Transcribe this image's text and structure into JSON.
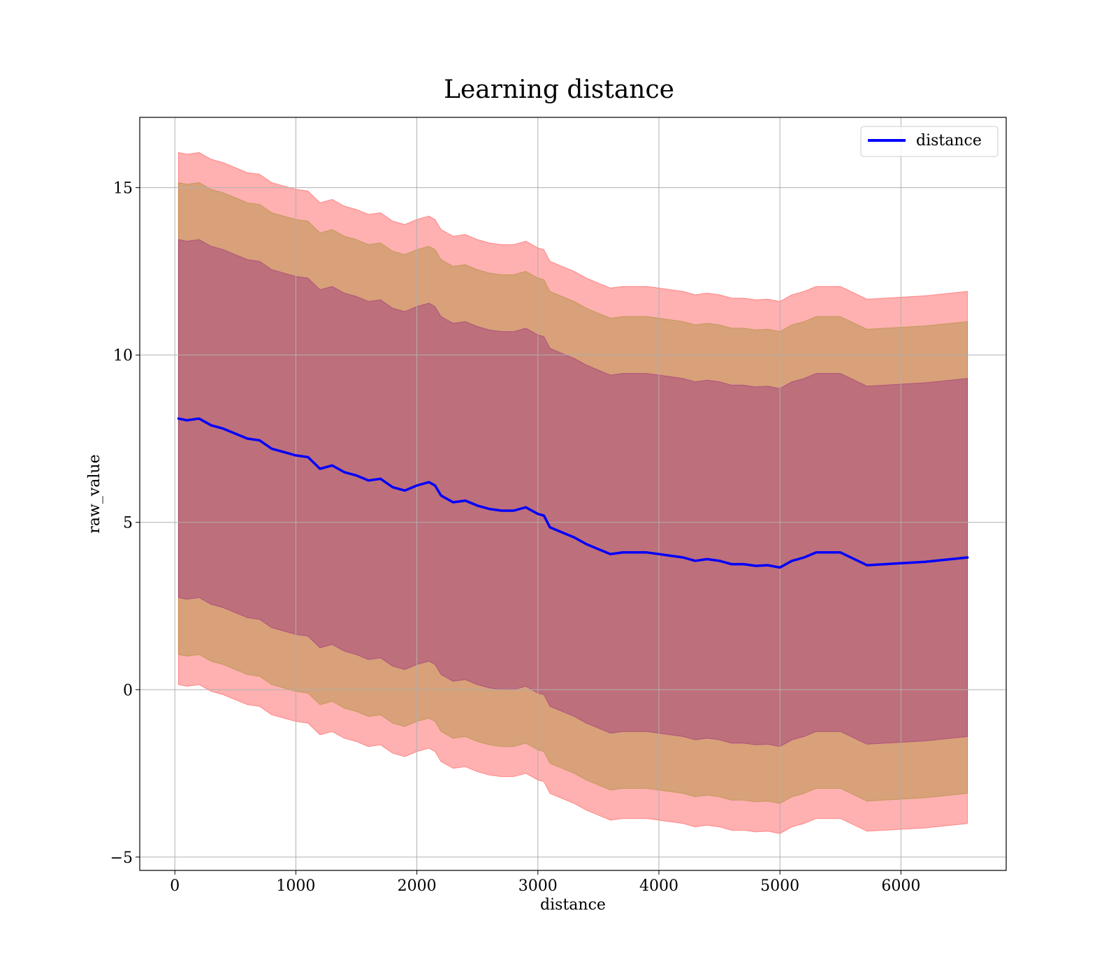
{
  "chart_data": {
    "type": "line",
    "title": "Learning distance",
    "xlabel": "distance",
    "ylabel": "raw_value",
    "xlim": [
      -290,
      6870
    ],
    "ylim": [
      -5.4,
      17.1
    ],
    "x_ticks": [
      0,
      1000,
      2000,
      3000,
      4000,
      5000,
      6000
    ],
    "y_ticks": [
      -5,
      0,
      5,
      10,
      15
    ],
    "x_tick_labels": [
      "0",
      "1000",
      "2000",
      "3000",
      "4000",
      "5000",
      "6000"
    ],
    "y_tick_labels": [
      "−5",
      "0",
      "5",
      "10",
      "15"
    ],
    "grid": true,
    "legend": {
      "position": "top-right",
      "entries": [
        "distance"
      ]
    },
    "series": [
      {
        "name": "distance",
        "color": "#0000ff",
        "x": [
          30,
          100,
          200,
          300,
          400,
          500,
          600,
          700,
          800,
          900,
          1000,
          1100,
          1200,
          1300,
          1400,
          1500,
          1600,
          1700,
          1800,
          1900,
          2000,
          2100,
          2150,
          2200,
          2300,
          2400,
          2500,
          2600,
          2700,
          2800,
          2900,
          3000,
          3050,
          3100,
          3200,
          3300,
          3400,
          3500,
          3600,
          3700,
          3800,
          3900,
          4000,
          4100,
          4200,
          4300,
          4400,
          4500,
          4600,
          4700,
          4800,
          4900,
          5000,
          5100,
          5200,
          5300,
          5500,
          5720,
          6200,
          6550
        ],
        "values": [
          8.1,
          8.05,
          8.1,
          7.9,
          7.8,
          7.65,
          7.5,
          7.45,
          7.2,
          7.1,
          7.0,
          6.95,
          6.6,
          6.7,
          6.5,
          6.4,
          6.25,
          6.3,
          6.05,
          5.95,
          6.1,
          6.2,
          6.1,
          5.8,
          5.6,
          5.65,
          5.5,
          5.4,
          5.35,
          5.35,
          5.45,
          5.25,
          5.2,
          4.85,
          4.7,
          4.55,
          4.35,
          4.2,
          4.05,
          4.1,
          4.1,
          4.1,
          4.05,
          4.0,
          3.95,
          3.85,
          3.9,
          3.85,
          3.75,
          3.75,
          3.7,
          3.72,
          3.65,
          3.85,
          3.95,
          4.1,
          4.1,
          3.72,
          3.82,
          3.95
        ]
      }
    ],
    "bands": [
      {
        "name": "outer",
        "color": "#ff0000",
        "opacity": 0.31,
        "half_width": 7.95
      },
      {
        "name": "middle",
        "color": "#808000",
        "opacity": 0.31,
        "half_width": 7.05
      },
      {
        "name": "inner",
        "color": "#800080",
        "opacity": 0.31,
        "half_width": 5.35
      }
    ]
  }
}
